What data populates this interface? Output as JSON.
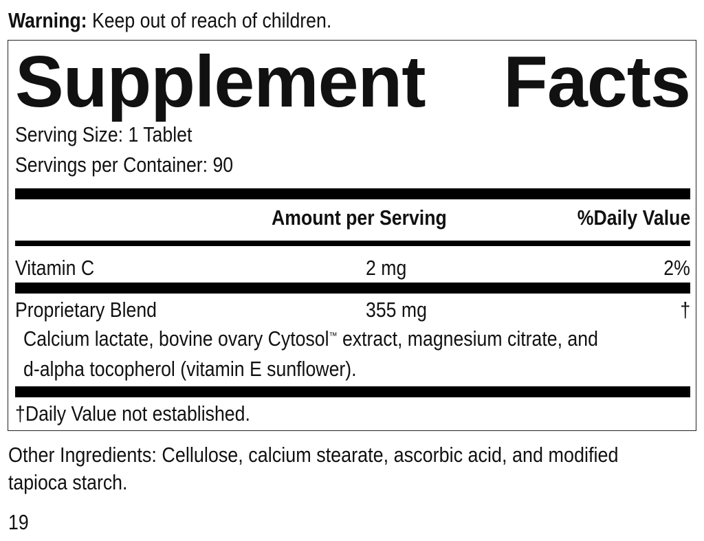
{
  "warning": {
    "label": "Warning:",
    "text": "Keep out of reach of children."
  },
  "title": {
    "word1": "Supplement",
    "word2": "Facts"
  },
  "serving_size": "Serving Size: 1 Tablet",
  "servings_per_container": "Servings per Container: 90",
  "headers": {
    "amount": "Amount per Serving",
    "daily_value": "%Daily Value"
  },
  "rows": [
    {
      "name": "Vitamin C",
      "amount": "2 mg",
      "dv": "2%"
    },
    {
      "name": "Proprietary Blend",
      "amount": "355 mg",
      "dv": "†",
      "description_line1_a": "Calcium lactate, bovine ovary Cytosol",
      "trademark": "™",
      "description_line1_b": " extract, magnesium citrate, and",
      "description_line2": "d-alpha tocopherol (vitamin E sunflower)."
    }
  ],
  "footnote": "†Daily Value not established.",
  "other_ingredients": {
    "line1": "Other Ingredients: Cellulose, calcium stearate, ascorbic acid, and modified",
    "line2": "tapioca starch."
  },
  "page_number": "19"
}
